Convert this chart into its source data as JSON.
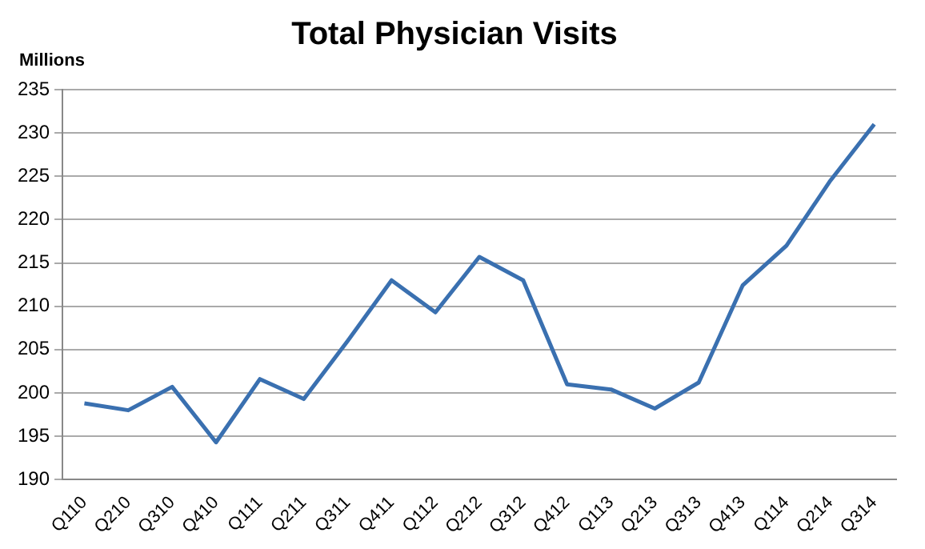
{
  "chart_data": {
    "type": "line",
    "title": "Total Physician Visits",
    "ylabel": "Millions",
    "categories": [
      "Q110",
      "Q210",
      "Q310",
      "Q410",
      "Q111",
      "Q211",
      "Q311",
      "Q411",
      "Q112",
      "Q212",
      "Q312",
      "Q412",
      "Q113",
      "Q213",
      "Q313",
      "Q413",
      "Q114",
      "Q214",
      "Q314"
    ],
    "series": [
      {
        "color": "#3a70b0",
        "values": [
          198.8,
          198,
          200.7,
          194.3,
          201.6,
          199.3,
          206,
          213,
          209.3,
          215.7,
          213,
          201,
          200.4,
          198.2,
          201.2,
          212.4,
          217,
          224.5,
          231
        ]
      }
    ],
    "ylim": [
      190,
      235
    ],
    "yticks": [
      190,
      195,
      200,
      205,
      210,
      215,
      220,
      225,
      230,
      235
    ],
    "grid": "y",
    "legend": false,
    "marker": "none",
    "line_style": "solid"
  }
}
